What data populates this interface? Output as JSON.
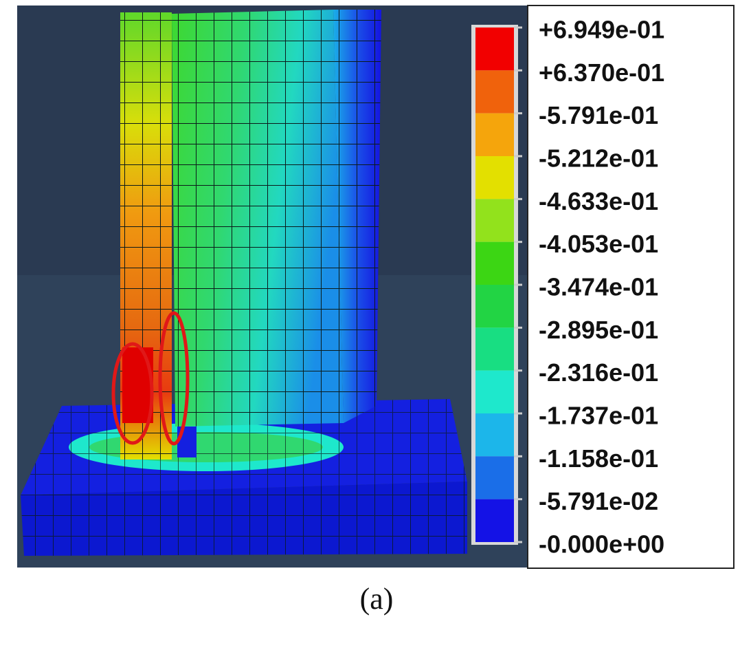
{
  "legend": {
    "labels": [
      "+6.949e-01",
      "+6.370e-01",
      "-5.791e-01",
      "-5.212e-01",
      "-4.633e-01",
      "-4.053e-01",
      "-3.474e-01",
      "-2.895e-01",
      "-2.316e-01",
      "-1.737e-01",
      "-1.158e-01",
      "-5.791e-02",
      "-0.000e+00"
    ],
    "colors": [
      "#f20000",
      "#f0620c",
      "#f5a50c",
      "#e3e000",
      "#92e21c",
      "#3cd614",
      "#22d444",
      "#18de82",
      "#1ee8cc",
      "#1cb6ea",
      "#1a6ee8",
      "#1412e6"
    ]
  },
  "caption": "(a)"
}
